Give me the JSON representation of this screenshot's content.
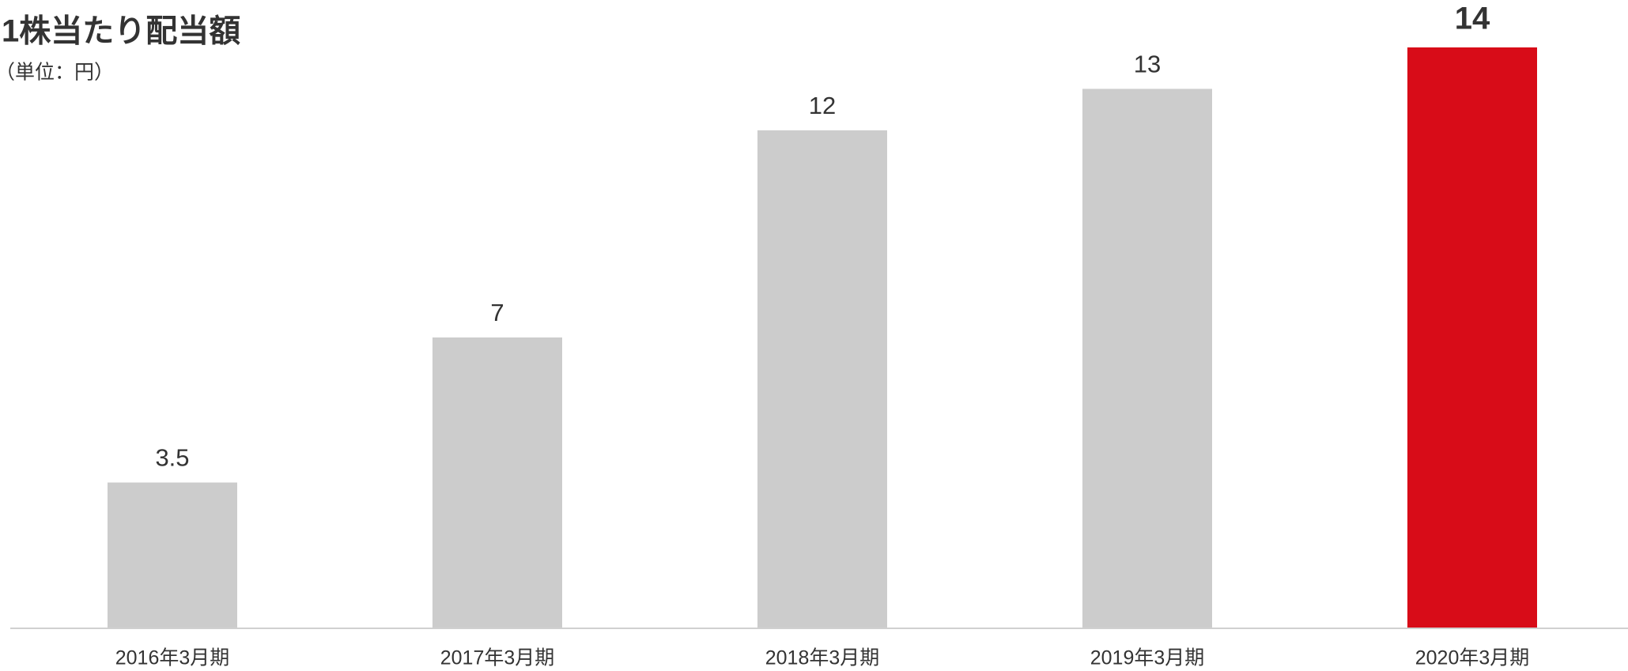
{
  "chart_data": {
    "type": "bar",
    "title": "1株当たり配当額",
    "subtitle": "（単位：円）",
    "categories": [
      "2016年3月期",
      "2017年3月期",
      "2018年3月期",
      "2019年3月期",
      "2020年3月期"
    ],
    "values": [
      3.5,
      7,
      12,
      13,
      14
    ],
    "colors": [
      "#cccccc",
      "#cccccc",
      "#cccccc",
      "#cccccc",
      "#d80c18"
    ],
    "ylim": [
      0,
      14
    ]
  }
}
